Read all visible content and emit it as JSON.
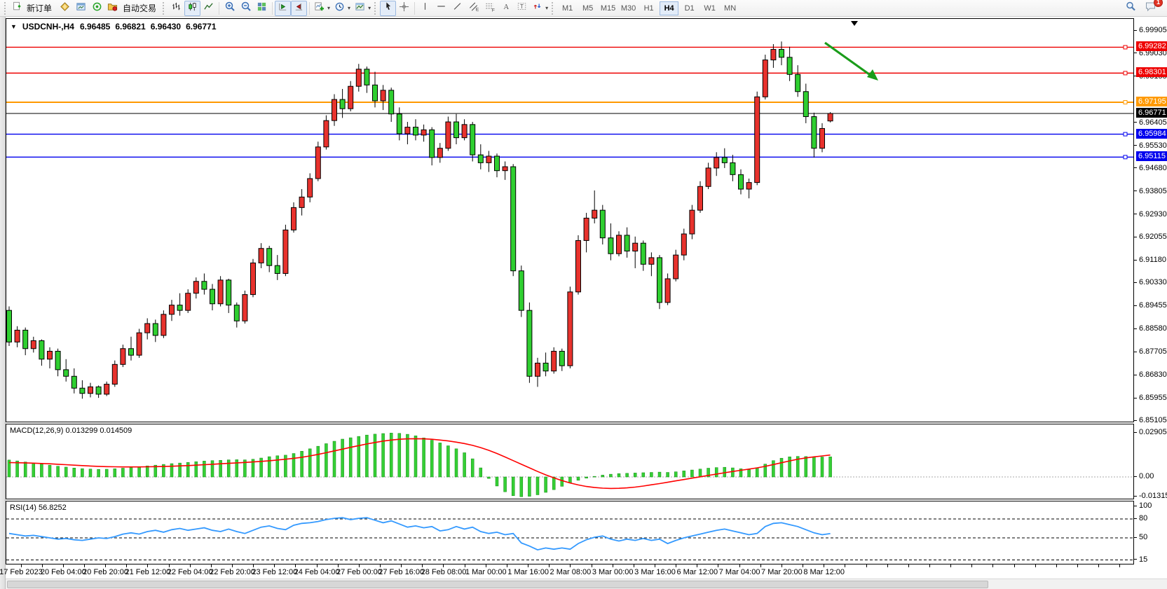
{
  "toolbar": {
    "new_order_label": "新订单",
    "auto_trading_label": "自动交易",
    "timeframes": [
      "M1",
      "M5",
      "M15",
      "M30",
      "H1",
      "H4",
      "D1",
      "W1",
      "MN"
    ],
    "active_timeframe": "H4",
    "notification_badge": "1",
    "tool_glyphs": {
      "channel": "E",
      "fibonacci": "F",
      "text": "A",
      "label": "T"
    }
  },
  "chart_header": {
    "symbol": "USDCNH-,H4",
    "open": "6.96485",
    "high": "6.96821",
    "low": "6.96430",
    "close": "6.96771"
  },
  "price_axis": {
    "ticks": [
      "6.99905",
      "6.99030",
      "6.98155",
      "6.96405",
      "6.95530",
      "6.94680",
      "6.93805",
      "6.92930",
      "6.92055",
      "6.91180",
      "6.90330",
      "6.89455",
      "6.88580",
      "6.87705",
      "6.86830",
      "6.85955",
      "6.85105"
    ]
  },
  "hlines": [
    {
      "price": 6.99282,
      "label": "6.99282",
      "color": "#ee0000",
      "width": 1.4
    },
    {
      "price": 6.98301,
      "label": "6.98301",
      "color": "#ee0000",
      "width": 1.4
    },
    {
      "price": 6.97195,
      "label": "6.97195",
      "color": "#ff9900",
      "width": 2
    },
    {
      "price": 6.95984,
      "label": "6.95984",
      "color": "#0000ee",
      "width": 1.4
    },
    {
      "price": 6.95115,
      "label": "6.95115",
      "color": "#0000ee",
      "width": 1.4
    }
  ],
  "last_price": {
    "price": 6.96771,
    "label": "6.96771",
    "color": "#000000"
  },
  "macd": {
    "label": "MACD(12,26,9) 0.013299 0.014509",
    "axis_top": "0.029058",
    "axis_zero": "0.00",
    "axis_bottom": "-0.013154"
  },
  "rsi": {
    "label": "RSI(14) 56.8252",
    "axis": [
      "100",
      "80",
      "50",
      "15"
    ]
  },
  "colors": {
    "bull": "#e8322d",
    "bear": "#2fcf30",
    "macd_hist": "#35cf35",
    "macd_signal": "#ff0000",
    "rsi_line": "#3399ff",
    "arrow": "#1a9c1a"
  },
  "chart_data": [
    {
      "type": "candlestick",
      "title": "USDCNH-,H4",
      "symbol": "USDCNH-",
      "timeframe": "H4",
      "ylim": [
        6.85105,
        6.99905
      ],
      "color_convention": "red=up, green=down",
      "time_labels": [
        "17 Feb 2023",
        "20 Feb 04:00",
        "20 Feb 20:00",
        "21 Feb 12:00",
        "22 Feb 04:00",
        "22 Feb 20:00",
        "23 Feb 12:00",
        "24 Feb 04:00",
        "27 Feb 00:00",
        "27 Feb 16:00",
        "28 Feb 08:00",
        "1 Mar 00:00",
        "1 Mar 16:00",
        "2 Mar 08:00",
        "3 Mar 00:00",
        "3 Mar 16:00",
        "6 Mar 12:00",
        "7 Mar 04:00",
        "7 Mar 20:00",
        "8 Mar 12:00"
      ],
      "candles": [
        [
          6.893,
          6.8945,
          6.8795,
          6.881
        ],
        [
          6.881,
          6.887,
          6.879,
          6.8855
        ],
        [
          6.8855,
          6.8865,
          6.876,
          6.8785
        ],
        [
          6.8785,
          6.883,
          6.877,
          6.8815
        ],
        [
          6.8815,
          6.882,
          6.872,
          6.8745
        ],
        [
          6.8745,
          6.879,
          6.871,
          6.8775
        ],
        [
          6.8775,
          6.8785,
          6.868,
          6.8705
        ],
        [
          6.8705,
          6.8745,
          6.866,
          6.868
        ],
        [
          6.868,
          6.871,
          6.8615,
          6.8635
        ],
        [
          6.8635,
          6.8665,
          6.8595,
          6.8615
        ],
        [
          6.8615,
          6.8655,
          6.86,
          6.864
        ],
        [
          6.864,
          6.8645,
          6.8598,
          6.8612
        ],
        [
          6.8612,
          6.866,
          6.8605,
          6.865
        ],
        [
          6.865,
          6.874,
          6.864,
          6.8725
        ],
        [
          6.8725,
          6.88,
          6.8715,
          6.8785
        ],
        [
          6.8785,
          6.883,
          6.874,
          6.876
        ],
        [
          6.876,
          6.886,
          6.875,
          6.8845
        ],
        [
          6.8845,
          6.89,
          6.882,
          6.888
        ],
        [
          6.888,
          6.8895,
          6.881,
          6.8835
        ],
        [
          6.8835,
          6.893,
          6.8825,
          6.8915
        ],
        [
          6.8915,
          6.897,
          6.889,
          6.895
        ],
        [
          6.895,
          6.8995,
          6.891,
          6.893
        ],
        [
          6.893,
          6.901,
          6.892,
          6.8995
        ],
        [
          6.8995,
          6.9055,
          6.8975,
          6.904
        ],
        [
          6.904,
          6.907,
          6.899,
          6.901
        ],
        [
          6.901,
          6.903,
          6.893,
          6.8955
        ],
        [
          6.8955,
          6.906,
          6.8945,
          6.9045
        ],
        [
          6.9045,
          6.905,
          6.892,
          6.895
        ],
        [
          6.895,
          6.896,
          6.8865,
          6.889
        ],
        [
          6.889,
          6.9005,
          6.888,
          6.899
        ],
        [
          6.899,
          6.9125,
          6.898,
          6.911
        ],
        [
          6.911,
          6.9185,
          6.909,
          6.9165
        ],
        [
          6.9165,
          6.9175,
          6.9075,
          6.91
        ],
        [
          6.91,
          6.914,
          6.9045,
          6.907
        ],
        [
          6.907,
          6.9255,
          6.906,
          6.9235
        ],
        [
          6.9235,
          6.934,
          6.9225,
          6.932
        ],
        [
          6.932,
          6.939,
          6.929,
          6.936
        ],
        [
          6.936,
          6.945,
          6.934,
          6.943
        ],
        [
          6.943,
          6.957,
          6.942,
          6.955
        ],
        [
          6.955,
          6.967,
          6.954,
          6.965
        ],
        [
          6.965,
          6.975,
          6.963,
          6.973
        ],
        [
          6.973,
          6.977,
          6.966,
          6.9695
        ],
        [
          6.9695,
          6.98,
          6.9685,
          6.978
        ],
        [
          6.978,
          6.9865,
          6.976,
          6.9845
        ],
        [
          6.9845,
          6.9855,
          6.9755,
          6.9785
        ],
        [
          6.9785,
          6.9835,
          6.97,
          6.9725
        ],
        [
          6.9725,
          6.9785,
          6.969,
          6.9765
        ],
        [
          6.9765,
          6.9775,
          6.9645,
          6.9675
        ],
        [
          6.9675,
          6.97,
          6.9575,
          6.96
        ],
        [
          6.96,
          6.9645,
          6.956,
          6.9625
        ],
        [
          6.9625,
          6.9655,
          6.9575,
          6.9595
        ],
        [
          6.9595,
          6.9635,
          6.957,
          6.9615
        ],
        [
          6.9615,
          6.9625,
          6.948,
          6.951
        ],
        [
          6.951,
          6.9565,
          6.949,
          6.9545
        ],
        [
          6.9545,
          6.9665,
          6.9535,
          6.9645
        ],
        [
          6.9645,
          6.9675,
          6.956,
          6.9585
        ],
        [
          6.9585,
          6.9655,
          6.9575,
          6.9635
        ],
        [
          6.9635,
          6.9645,
          6.9495,
          6.952
        ],
        [
          6.952,
          6.956,
          6.9465,
          6.949
        ],
        [
          6.949,
          6.9535,
          6.9455,
          6.9515
        ],
        [
          6.9515,
          6.9525,
          6.9435,
          6.946
        ],
        [
          6.946,
          6.9495,
          6.9425,
          6.9475
        ],
        [
          6.9475,
          6.9485,
          6.906,
          6.908
        ],
        [
          6.908,
          6.91,
          6.8905,
          6.893
        ],
        [
          6.893,
          6.896,
          6.8655,
          6.868
        ],
        [
          6.868,
          6.875,
          6.864,
          6.873
        ],
        [
          6.873,
          6.877,
          6.868,
          6.87
        ],
        [
          6.87,
          6.879,
          6.869,
          6.8775
        ],
        [
          6.8775,
          6.8785,
          6.87,
          6.872
        ],
        [
          6.872,
          6.902,
          6.871,
          6.9
        ],
        [
          6.9,
          6.9215,
          6.899,
          6.9195
        ],
        [
          6.9195,
          6.93,
          6.915,
          6.928
        ],
        [
          6.928,
          6.9385,
          6.926,
          6.931
        ],
        [
          6.931,
          6.933,
          6.918,
          6.9205
        ],
        [
          6.9205,
          6.926,
          6.912,
          6.9145
        ],
        [
          6.9145,
          6.923,
          6.9135,
          6.9215
        ],
        [
          6.9215,
          6.9245,
          6.913,
          6.9155
        ],
        [
          6.9155,
          6.921,
          6.909,
          6.9185
        ],
        [
          6.9185,
          6.9195,
          6.908,
          6.9105
        ],
        [
          6.9105,
          6.915,
          6.906,
          6.913
        ],
        [
          6.913,
          6.914,
          6.8935,
          6.896
        ],
        [
          6.896,
          6.907,
          6.895,
          6.905
        ],
        [
          6.905,
          6.916,
          6.904,
          6.914
        ],
        [
          6.914,
          6.924,
          6.912,
          6.922
        ],
        [
          6.922,
          6.933,
          6.92,
          6.931
        ],
        [
          6.931,
          6.942,
          6.93,
          6.94
        ],
        [
          6.94,
          6.949,
          6.939,
          6.947
        ],
        [
          6.947,
          6.953,
          6.944,
          6.951
        ],
        [
          6.951,
          6.9545,
          6.947,
          6.949
        ],
        [
          6.949,
          6.952,
          6.942,
          6.9445
        ],
        [
          6.9445,
          6.9465,
          6.937,
          6.939
        ],
        [
          6.939,
          6.943,
          6.9355,
          6.9415
        ],
        [
          6.9415,
          6.976,
          6.9405,
          6.974
        ],
        [
          6.974,
          6.99,
          6.973,
          6.988
        ],
        [
          6.988,
          6.994,
          6.985,
          6.992
        ],
        [
          6.992,
          6.995,
          6.986,
          6.989
        ],
        [
          6.989,
          6.993,
          6.98,
          6.9825
        ],
        [
          6.9825,
          6.986,
          6.974,
          6.976
        ],
        [
          6.976,
          6.979,
          6.964,
          6.9665
        ],
        [
          6.9665,
          6.968,
          6.951,
          6.9545
        ],
        [
          6.9545,
          6.964,
          6.953,
          6.962
        ],
        [
          6.96485,
          6.96821,
          6.9643,
          6.96771
        ]
      ]
    },
    {
      "type": "bar",
      "name": "MACD",
      "params": "12,26,9",
      "current_values": [
        0.013299,
        0.014509
      ],
      "ylim": [
        -0.013154,
        0.029058
      ],
      "histogram": [
        0.0112,
        0.0106,
        0.0099,
        0.0092,
        0.0085,
        0.0078,
        0.0071,
        0.0065,
        0.0059,
        0.0055,
        0.0052,
        0.005,
        0.0051,
        0.0054,
        0.0058,
        0.0063,
        0.0068,
        0.0073,
        0.0078,
        0.0083,
        0.0088,
        0.0092,
        0.0096,
        0.0101,
        0.0105,
        0.0108,
        0.011,
        0.0113,
        0.0114,
        0.0113,
        0.0117,
        0.0125,
        0.0134,
        0.014,
        0.0144,
        0.0155,
        0.017,
        0.0186,
        0.0203,
        0.022,
        0.0236,
        0.025,
        0.0259,
        0.0268,
        0.0277,
        0.0283,
        0.0287,
        0.029,
        0.0288,
        0.0282,
        0.0272,
        0.0258,
        0.0243,
        0.0225,
        0.0206,
        0.0186,
        0.016,
        0.012,
        0.006,
        -0.001,
        -0.006,
        -0.0098,
        -0.0124,
        -0.0131,
        -0.0128,
        -0.0118,
        -0.0102,
        -0.0084,
        -0.0062,
        -0.004,
        -0.0022,
        -0.0008,
        0.0004,
        0.0012,
        0.0018,
        0.0022,
        0.0024,
        0.0026,
        0.0028,
        0.003,
        0.0032,
        0.003,
        0.0034,
        0.004,
        0.0046,
        0.0052,
        0.0058,
        0.0062,
        0.0064,
        0.006,
        0.0054,
        0.0048,
        0.006,
        0.0085,
        0.0108,
        0.0124,
        0.0133,
        0.0136,
        0.0135,
        0.0133,
        0.0132,
        0.0133
      ],
      "signal": [
        0.0095,
        0.0094,
        0.0093,
        0.0091,
        0.0089,
        0.0087,
        0.0084,
        0.0081,
        0.0078,
        0.0075,
        0.0072,
        0.007,
        0.0068,
        0.0067,
        0.0066,
        0.0066,
        0.0066,
        0.0067,
        0.0068,
        0.0069,
        0.0071,
        0.0073,
        0.0075,
        0.0078,
        0.0081,
        0.0084,
        0.0087,
        0.009,
        0.0093,
        0.0096,
        0.0099,
        0.0103,
        0.0107,
        0.0112,
        0.0117,
        0.0123,
        0.013,
        0.0139,
        0.0149,
        0.016,
        0.0172,
        0.0184,
        0.0196,
        0.0207,
        0.0218,
        0.0228,
        0.0237,
        0.0244,
        0.0249,
        0.0252,
        0.0253,
        0.0252,
        0.0249,
        0.0244,
        0.0238,
        0.023,
        0.0221,
        0.0209,
        0.0194,
        0.0176,
        0.0155,
        0.0132,
        0.0108,
        0.0084,
        0.006,
        0.0036,
        0.0014,
        -0.0006,
        -0.0024,
        -0.004,
        -0.0053,
        -0.0063,
        -0.007,
        -0.0074,
        -0.0076,
        -0.0075,
        -0.0072,
        -0.0067,
        -0.006,
        -0.0052,
        -0.0044,
        -0.0035,
        -0.0026,
        -0.0017,
        -0.0008,
        0.0001,
        0.001,
        0.0019,
        0.0028,
        0.0036,
        0.0044,
        0.0052,
        0.006,
        0.007,
        0.0082,
        0.0094,
        0.0106,
        0.0117,
        0.0126,
        0.0133,
        0.0139,
        0.0145
      ]
    },
    {
      "type": "line",
      "name": "RSI",
      "params": "14",
      "current_value": 56.8252,
      "ylim": [
        0,
        100
      ],
      "levels": [
        80,
        50,
        15
      ],
      "values": [
        57,
        55,
        53,
        54,
        52,
        50,
        48,
        49,
        47,
        46,
        48,
        50,
        49,
        52,
        56,
        58,
        56,
        60,
        62,
        59,
        63,
        65,
        62,
        64,
        66,
        62,
        60,
        64,
        60,
        57,
        62,
        67,
        69,
        65,
        63,
        70,
        73,
        74,
        76,
        79,
        81,
        82,
        79,
        81,
        82,
        78,
        74,
        77,
        72,
        67,
        69,
        66,
        68,
        61,
        63,
        68,
        64,
        67,
        60,
        57,
        59,
        55,
        57,
        42,
        37,
        31,
        34,
        32,
        34,
        32,
        41,
        47,
        51,
        53,
        48,
        45,
        48,
        46,
        49,
        46,
        48,
        41,
        46,
        50,
        53,
        56,
        59,
        62,
        64,
        61,
        58,
        55,
        57,
        68,
        73,
        74,
        71,
        68,
        63,
        58,
        55,
        56.8
      ]
    }
  ],
  "annotations": {
    "arrow": {
      "direction": "down-right",
      "color": "#1a9c1a"
    }
  }
}
